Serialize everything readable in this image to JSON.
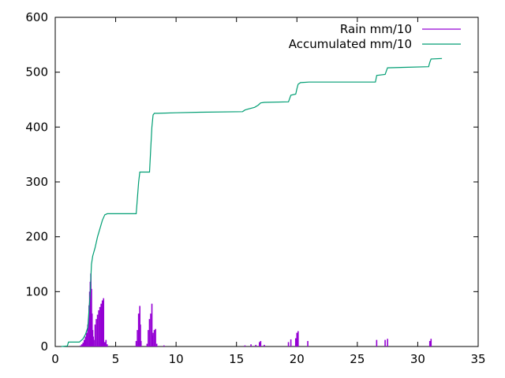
{
  "chart_data": {
    "type": "line",
    "title": "",
    "xlabel": "",
    "ylabel": "",
    "xlim": [
      0,
      35
    ],
    "ylim": [
      0,
      600
    ],
    "x_ticks": [
      0,
      5,
      10,
      15,
      20,
      25,
      30,
      35
    ],
    "y_ticks": [
      0,
      100,
      200,
      300,
      400,
      500,
      600
    ],
    "x_tick_labels": [
      "0",
      "5",
      "10",
      "15",
      "20",
      "25",
      "30",
      "35"
    ],
    "y_tick_labels": [
      "0",
      "100",
      "200",
      "300",
      "400",
      "500",
      "600"
    ],
    "grid": false,
    "legend_position": "top-right",
    "series": [
      {
        "name": "Rain mm/10",
        "color": "#9400d3",
        "style": "impulses",
        "points": [
          [
            2.1,
            2
          ],
          [
            2.2,
            4
          ],
          [
            2.3,
            7
          ],
          [
            2.4,
            12
          ],
          [
            2.5,
            18
          ],
          [
            2.6,
            25
          ],
          [
            2.7,
            40
          ],
          [
            2.8,
            75
          ],
          [
            2.85,
            100
          ],
          [
            2.9,
            118
          ],
          [
            2.95,
            133
          ],
          [
            3.0,
            105
          ],
          [
            3.05,
            60
          ],
          [
            3.1,
            30
          ],
          [
            3.15,
            18
          ],
          [
            3.2,
            12
          ],
          [
            3.3,
            40
          ],
          [
            3.4,
            50
          ],
          [
            3.5,
            58
          ],
          [
            3.6,
            66
          ],
          [
            3.7,
            72
          ],
          [
            3.8,
            78
          ],
          [
            3.9,
            84
          ],
          [
            4.0,
            88
          ],
          [
            4.1,
            8
          ],
          [
            4.2,
            12
          ],
          [
            4.3,
            4
          ],
          [
            6.7,
            10
          ],
          [
            6.8,
            30
          ],
          [
            6.9,
            60
          ],
          [
            7.0,
            74
          ],
          [
            7.05,
            40
          ],
          [
            7.1,
            10
          ],
          [
            7.6,
            5
          ],
          [
            7.7,
            30
          ],
          [
            7.8,
            50
          ],
          [
            7.9,
            60
          ],
          [
            8.0,
            78
          ],
          [
            8.05,
            20
          ],
          [
            8.1,
            25
          ],
          [
            8.2,
            30
          ],
          [
            8.3,
            32
          ],
          [
            8.4,
            5
          ],
          [
            9.0,
            2
          ],
          [
            15.7,
            2
          ],
          [
            16.2,
            4
          ],
          [
            16.6,
            3
          ],
          [
            16.9,
            8
          ],
          [
            17.0,
            10
          ],
          [
            17.3,
            3
          ],
          [
            19.3,
            8
          ],
          [
            19.5,
            13
          ],
          [
            19.9,
            15
          ],
          [
            20.0,
            25
          ],
          [
            20.1,
            28
          ],
          [
            20.9,
            10
          ],
          [
            26.6,
            12
          ],
          [
            27.3,
            12
          ],
          [
            27.5,
            14
          ],
          [
            31.0,
            10
          ],
          [
            31.1,
            14
          ]
        ]
      },
      {
        "name": "Accumulated mm/10",
        "color": "#009e73",
        "style": "lines",
        "points": [
          [
            0.5,
            0
          ],
          [
            1.0,
            1
          ],
          [
            1.1,
            8
          ],
          [
            2.0,
            8
          ],
          [
            2.3,
            14
          ],
          [
            2.5,
            22
          ],
          [
            2.7,
            35
          ],
          [
            2.9,
            100
          ],
          [
            3.0,
            150
          ],
          [
            3.1,
            165
          ],
          [
            3.3,
            180
          ],
          [
            3.5,
            200
          ],
          [
            3.7,
            215
          ],
          [
            3.9,
            230
          ],
          [
            4.1,
            240
          ],
          [
            4.3,
            242
          ],
          [
            6.7,
            242
          ],
          [
            6.8,
            270
          ],
          [
            6.9,
            300
          ],
          [
            7.0,
            318
          ],
          [
            7.8,
            318
          ],
          [
            7.9,
            360
          ],
          [
            8.0,
            400
          ],
          [
            8.1,
            422
          ],
          [
            8.2,
            425
          ],
          [
            8.5,
            425
          ],
          [
            10.0,
            426
          ],
          [
            12.0,
            427
          ],
          [
            15.5,
            428
          ],
          [
            15.7,
            431
          ],
          [
            16.0,
            433
          ],
          [
            16.5,
            436
          ],
          [
            16.8,
            440
          ],
          [
            17.0,
            444
          ],
          [
            17.3,
            445
          ],
          [
            19.3,
            446
          ],
          [
            19.5,
            458
          ],
          [
            19.9,
            460
          ],
          [
            20.0,
            470
          ],
          [
            20.1,
            478
          ],
          [
            20.3,
            481
          ],
          [
            21.0,
            482
          ],
          [
            26.5,
            482
          ],
          [
            26.6,
            494
          ],
          [
            27.3,
            496
          ],
          [
            27.5,
            508
          ],
          [
            30.9,
            510
          ],
          [
            31.0,
            518
          ],
          [
            31.1,
            524
          ],
          [
            32.0,
            525
          ]
        ]
      }
    ]
  }
}
